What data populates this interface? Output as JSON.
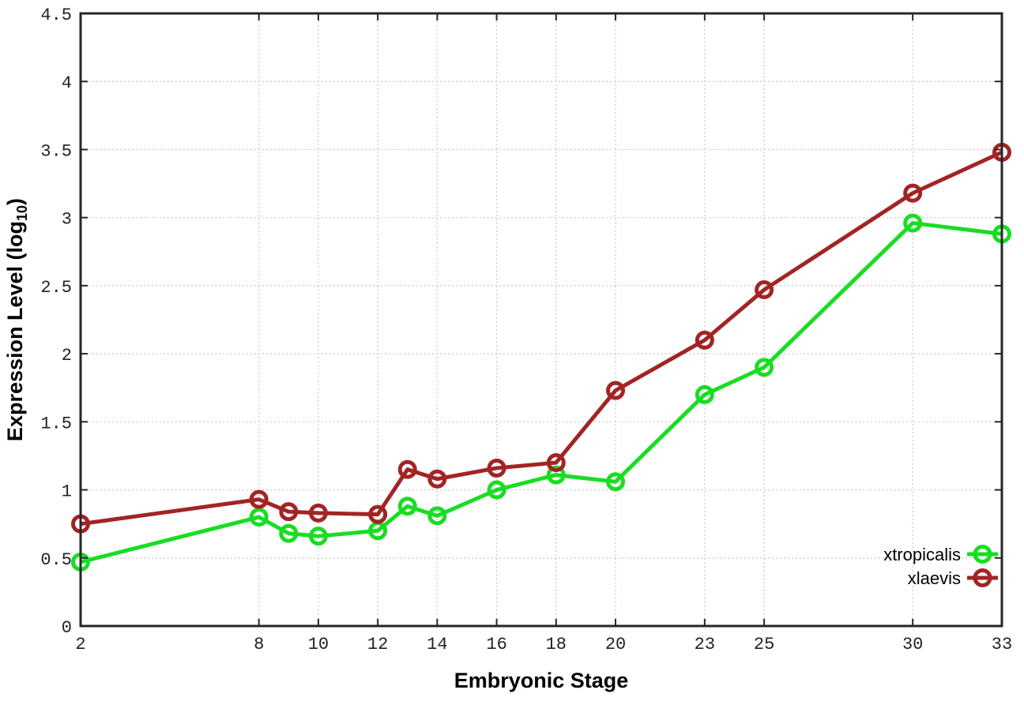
{
  "figure": {
    "background": "#ffffff"
  },
  "chart_data": {
    "type": "line",
    "x": [
      2,
      8,
      9,
      10,
      12,
      13,
      14,
      16,
      18,
      20,
      23,
      25,
      30,
      33
    ],
    "series": [
      {
        "name": "xtropicalis",
        "color": "#19dd23",
        "marker": "open-circle",
        "values": [
          0.47,
          0.8,
          0.68,
          0.66,
          0.7,
          0.88,
          0.81,
          1.0,
          1.11,
          1.06,
          1.7,
          1.9,
          2.96,
          2.88
        ]
      },
      {
        "name": "xlaevis",
        "color": "#a22424",
        "marker": "open-circle",
        "values": [
          0.75,
          0.93,
          0.84,
          0.83,
          0.82,
          1.15,
          1.08,
          1.16,
          1.2,
          1.73,
          2.1,
          2.47,
          3.18,
          3.48
        ]
      }
    ],
    "xlabel": "Embryonic Stage",
    "ylabel": {
      "prefix": "Expression Level (log",
      "sub": "10",
      "suffix": ")"
    },
    "xticks": [
      2,
      8,
      10,
      12,
      14,
      16,
      18,
      20,
      23,
      25,
      30,
      33
    ],
    "yticks": [
      0,
      0.5,
      1,
      1.5,
      2,
      2.5,
      3,
      3.5,
      4,
      4.5
    ],
    "xlim": [
      2,
      33
    ],
    "ylim": [
      0,
      4.5
    ],
    "grid": true,
    "legend_position": "bottom-right"
  },
  "style": {
    "grid_color": "#c9c9c9",
    "axis_color": "#262626",
    "tick_label_color": "#222222",
    "line_width": 5,
    "marker_radius": 9.5,
    "marker_stroke": 5
  }
}
